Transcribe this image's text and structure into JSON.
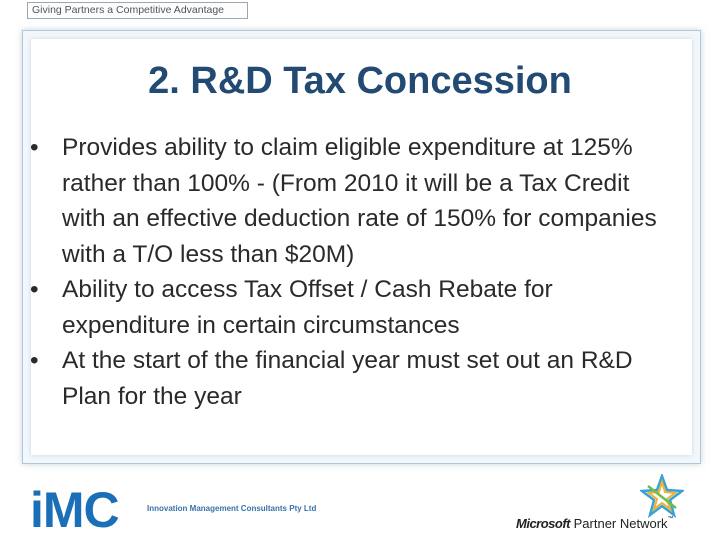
{
  "header": {
    "tagline": "Giving Partners a Competitive Advantage"
  },
  "slide": {
    "title": "2. R&D Tax Concession",
    "bullet_symbol": "•",
    "bullets": [
      "Provides ability to claim eligible expenditure at 125% rather than 100% - (From 2010 it will be a Tax Credit with an effective deduction rate of 150% for companies with a T/O less than $20M)",
      "Ability to access Tax Offset / Cash Rebate for expenditure in certain circumstances",
      "At the start of the financial year must set out an R&D Plan for the year"
    ]
  },
  "footer": {
    "logo_text": "iMC",
    "company_name": "Innovation Management Consultants Pty Ltd",
    "partner_brand": "Microsoft",
    "partner_program": "Partner Network",
    "partner_mark": "™",
    "logo_color": "#1b6fb6",
    "title_color": "#234a73"
  }
}
